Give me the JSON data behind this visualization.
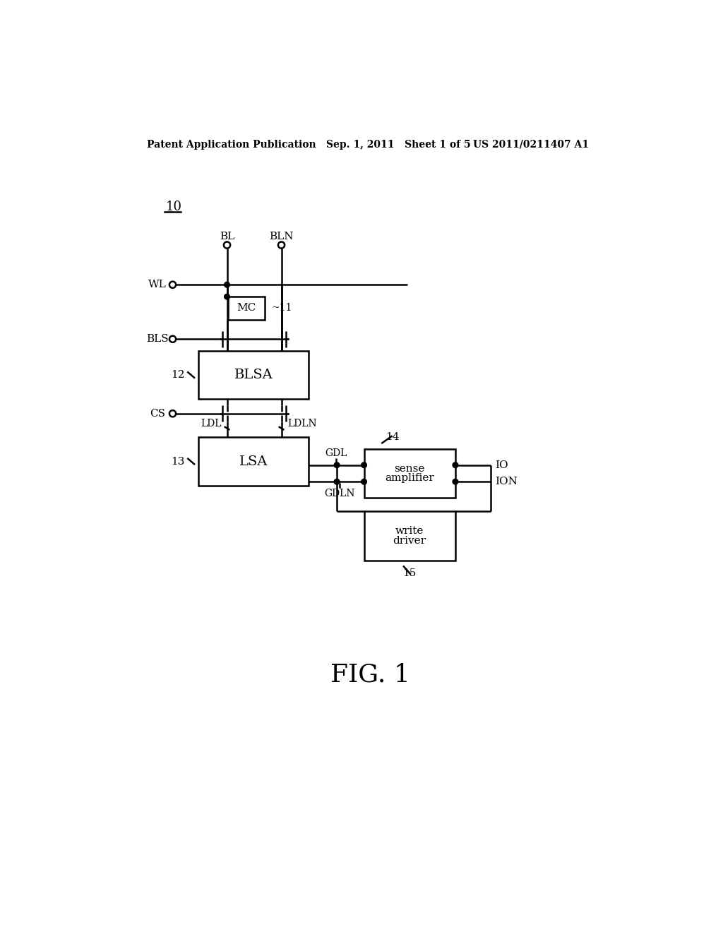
{
  "bg_color": "#ffffff",
  "line_color": "#000000",
  "header_left": "Patent Application Publication",
  "header_mid": "Sep. 1, 2011   Sheet 1 of 5",
  "header_right": "US 2011/0211407 A1",
  "label_10": "10",
  "label_11": "~11",
  "label_12": "12",
  "label_13": "13",
  "label_14": "14",
  "label_15": "15",
  "fig_label": "FIG. 1",
  "lw": 1.8,
  "dot_r": 5,
  "open_r": 6
}
